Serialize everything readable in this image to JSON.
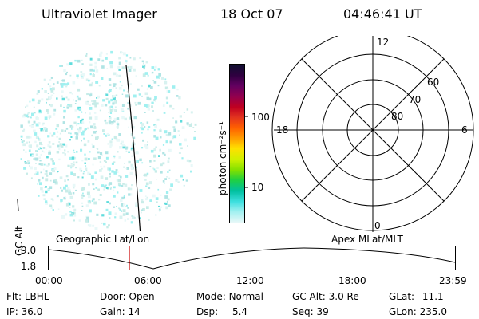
{
  "header": {
    "instrument": "Ultraviolet Imager",
    "date": "18 Oct 07",
    "time": "04:46:41 UT"
  },
  "colorbar": {
    "unit_label": "photon cm⁻²s⁻¹",
    "ticks": [
      "100",
      "10"
    ],
    "colors": [
      "#101030",
      "#300040",
      "#600060",
      "#900050",
      "#c00020",
      "#e03020",
      "#ff6000",
      "#ffa000",
      "#ffe000",
      "#d0f000",
      "#80e000",
      "#20d040",
      "#00c0a0",
      "#40e0e0",
      "#a0f0f0",
      "#e8f8f8"
    ]
  },
  "polar": {
    "mlt_labels": {
      "top": "12",
      "right": "6",
      "bottom": "0",
      "left": "18"
    },
    "lat_labels": [
      "60",
      "70",
      "80"
    ]
  },
  "timeline": {
    "left_label": "Geographic Lat/Lon",
    "right_label": "Apex MLat/MLT",
    "axis_label": "GC Alt",
    "y_ticks": [
      "9.0",
      "1.8"
    ],
    "x_ticks": [
      "00:00",
      "06:00",
      "12:00",
      "18:00",
      "23:59"
    ],
    "marker_color": "#cc0000"
  },
  "status": {
    "row1": [
      {
        "label": "Flt:",
        "value": "LBHL"
      },
      {
        "label": "Door:",
        "value": "Open"
      },
      {
        "label": "Mode:",
        "value": "Normal"
      },
      {
        "label": "GC Alt:",
        "value": "3.0 Re"
      },
      {
        "label": "GLat:",
        "value": "11.1"
      }
    ],
    "row2": [
      {
        "label": "IP:",
        "value": "36.0"
      },
      {
        "label": "Gain:",
        "value": "14"
      },
      {
        "label": "Dsp:",
        "value": "5.4"
      },
      {
        "label": "Seq:",
        "value": "39"
      },
      {
        "label": "GLon:",
        "value": "235.0"
      }
    ]
  }
}
